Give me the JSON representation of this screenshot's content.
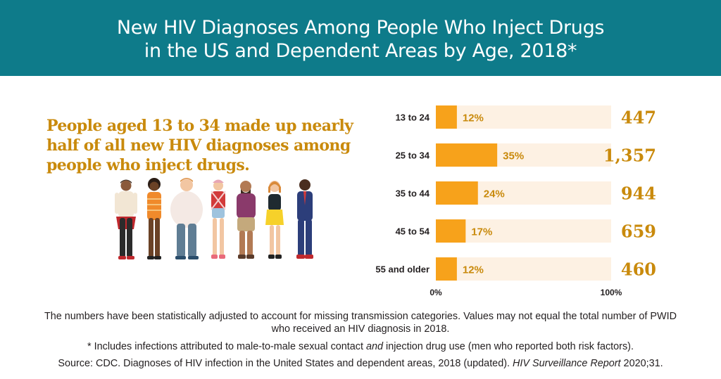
{
  "header": {
    "title_line1": "New HIV Diagnoses Among People Who Inject Drugs",
    "title_line2": "in the US and Dependent Areas by Age, 2018*"
  },
  "callout": {
    "line1": "People aged 13 to 34 made up nearly",
    "line2": "half of all new HIV diagnoses among",
    "line3": "people who inject drugs."
  },
  "illustration": {
    "icon": "group-of-people-illustration"
  },
  "colors": {
    "header": "#0e7b8a",
    "bar": "#f7a21b",
    "track": "#fdf1e3",
    "accent_text": "#c98a0c"
  },
  "chart_data": {
    "type": "bar",
    "orientation": "horizontal",
    "categories": [
      "13 to 24",
      "25 to 34",
      "35 to 44",
      "45 to 54",
      "55 and older"
    ],
    "values": [
      12,
      35,
      24,
      17,
      12
    ],
    "value_labels": [
      "12%",
      "35%",
      "24%",
      "17%",
      "12%"
    ],
    "counts": [
      "447",
      "1,357",
      "944",
      "659",
      "460"
    ],
    "xlim": [
      0,
      100
    ],
    "x_tick_labels": [
      "0%",
      "100%"
    ],
    "grid": false
  },
  "notes": {
    "line1": "The numbers have been statistically adjusted to account for missing transmission categories. Values may not equal the total number of PWID",
    "line2": "who received an HIV diagnosis in 2018.",
    "footnote_pre": "* Includes infections attributed to male-to-male sexual contact ",
    "footnote_em": "and",
    "footnote_post": " injection drug use (men who reported both risk factors).",
    "source_pre": "Source: CDC. Diagnoses of HIV infection in the United States and dependent areas, 2018 (updated). ",
    "source_em": "HIV Surveillance Report",
    "source_post": " 2020;31."
  }
}
